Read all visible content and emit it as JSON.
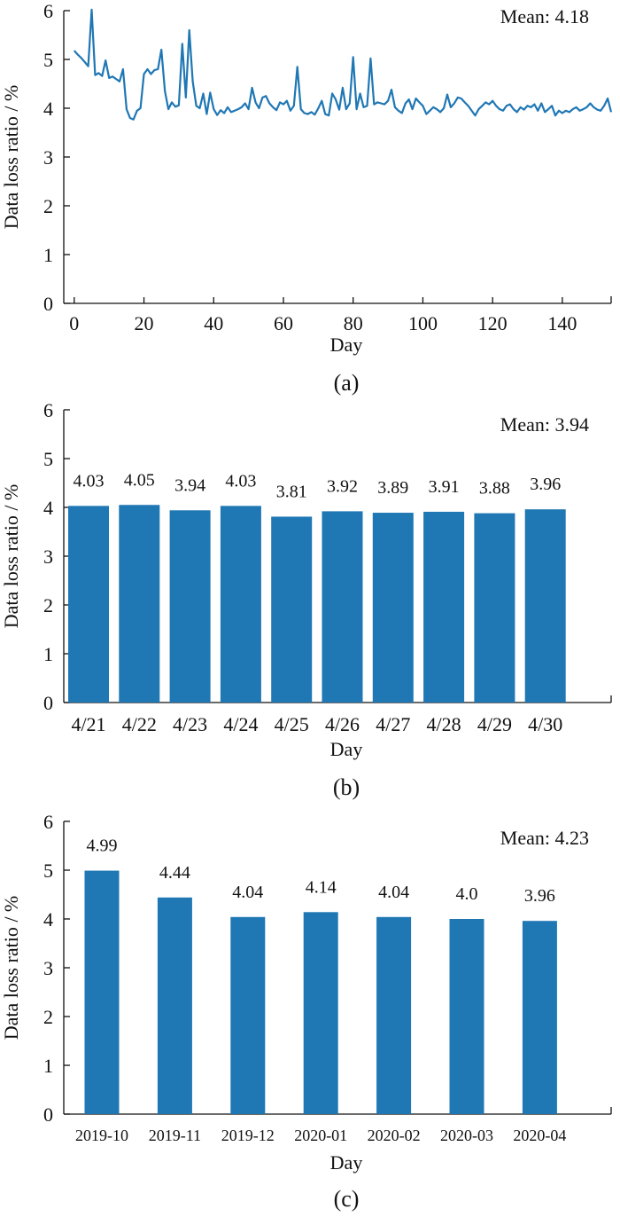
{
  "colors": {
    "series": "#1f77b4",
    "axis": "#111111"
  },
  "chart_data": [
    {
      "type": "line",
      "panel_label": "(a)",
      "annotation": "Mean: 4.18",
      "xlabel": "Day",
      "ylabel": "Data loss ratio / %",
      "xlim": [
        -3,
        154
      ],
      "ylim": [
        0,
        6
      ],
      "xticks": [
        0,
        20,
        40,
        60,
        80,
        100,
        120,
        140
      ],
      "yticks": [
        0,
        1,
        2,
        3,
        4,
        5,
        6
      ],
      "series": [
        {
          "name": "Data loss ratio",
          "values": [
            5.18,
            5.1,
            5.03,
            4.95,
            4.86,
            6.02,
            4.68,
            4.72,
            4.66,
            4.98,
            4.62,
            4.65,
            4.6,
            4.55,
            4.8,
            3.98,
            3.8,
            3.77,
            3.95,
            4.0,
            4.7,
            4.8,
            4.7,
            4.78,
            4.8,
            5.2,
            4.35,
            3.98,
            4.12,
            4.03,
            4.06,
            5.32,
            4.22,
            5.6,
            4.55,
            4.05,
            4.0,
            4.3,
            3.88,
            4.32,
            3.98,
            3.86,
            3.96,
            3.9,
            4.02,
            3.92,
            3.95,
            3.98,
            4.02,
            4.1,
            3.98,
            4.42,
            4.12,
            4.0,
            4.22,
            4.25,
            4.1,
            4.02,
            3.96,
            4.12,
            4.08,
            4.15,
            3.95,
            4.05,
            4.85,
            3.98,
            3.9,
            3.88,
            3.92,
            3.87,
            4.0,
            4.15,
            3.88,
            3.85,
            4.3,
            4.18,
            3.97,
            4.42,
            3.98,
            4.1,
            5.05,
            3.98,
            4.3,
            4.02,
            4.05,
            5.02,
            4.08,
            4.12,
            4.1,
            4.08,
            4.15,
            4.38,
            4.02,
            3.95,
            3.9,
            4.1,
            4.18,
            3.98,
            4.2,
            4.12,
            4.05,
            3.88,
            3.95,
            4.02,
            3.98,
            3.92,
            4.0,
            4.28,
            4.02,
            4.1,
            4.22,
            4.2,
            4.12,
            4.05,
            3.95,
            3.85,
            3.98,
            4.05,
            4.12,
            4.08,
            4.15,
            4.05,
            3.98,
            3.95,
            4.05,
            4.08,
            3.98,
            3.92,
            4.02,
            3.97,
            4.05,
            4.02,
            4.08,
            3.95,
            4.1,
            3.92,
            3.98,
            4.05,
            3.85,
            3.95,
            3.9,
            3.95,
            3.92,
            3.98,
            4.02,
            3.95,
            3.98,
            4.02,
            4.1,
            4.02,
            3.97,
            3.95,
            4.05,
            4.2,
            3.92
          ]
        }
      ]
    },
    {
      "type": "bar",
      "panel_label": "(b)",
      "annotation": "Mean: 3.94",
      "xlabel": "Day",
      "ylabel": "Data loss ratio / %",
      "ylim": [
        0,
        6
      ],
      "yticks": [
        0,
        1,
        2,
        3,
        4,
        5,
        6
      ],
      "categories": [
        "4/21",
        "4/22",
        "4/23",
        "4/24",
        "4/25",
        "4/26",
        "4/27",
        "4/28",
        "4/29",
        "4/30"
      ],
      "values": [
        4.03,
        4.05,
        3.94,
        4.03,
        3.81,
        3.92,
        3.89,
        3.91,
        3.88,
        3.96
      ],
      "value_labels": [
        "4.03",
        "4.05",
        "3.94",
        "4.03",
        "3.81",
        "3.92",
        "3.89",
        "3.91",
        "3.88",
        "3.96"
      ]
    },
    {
      "type": "bar",
      "panel_label": "(c)",
      "annotation": "Mean: 4.23",
      "xlabel": "Day",
      "ylabel": "Data loss ratio / %",
      "ylim": [
        0,
        6
      ],
      "yticks": [
        0,
        1,
        2,
        3,
        4,
        5,
        6
      ],
      "categories": [
        "2019-10",
        "2019-11",
        "2019-12",
        "2020-01",
        "2020-02",
        "2020-03",
        "2020-04"
      ],
      "values": [
        4.99,
        4.44,
        4.04,
        4.14,
        4.04,
        4.0,
        3.96
      ],
      "value_labels": [
        "4.99",
        "4.44",
        "4.04",
        "4.14",
        "4.04",
        "4.0",
        "3.96"
      ]
    }
  ]
}
